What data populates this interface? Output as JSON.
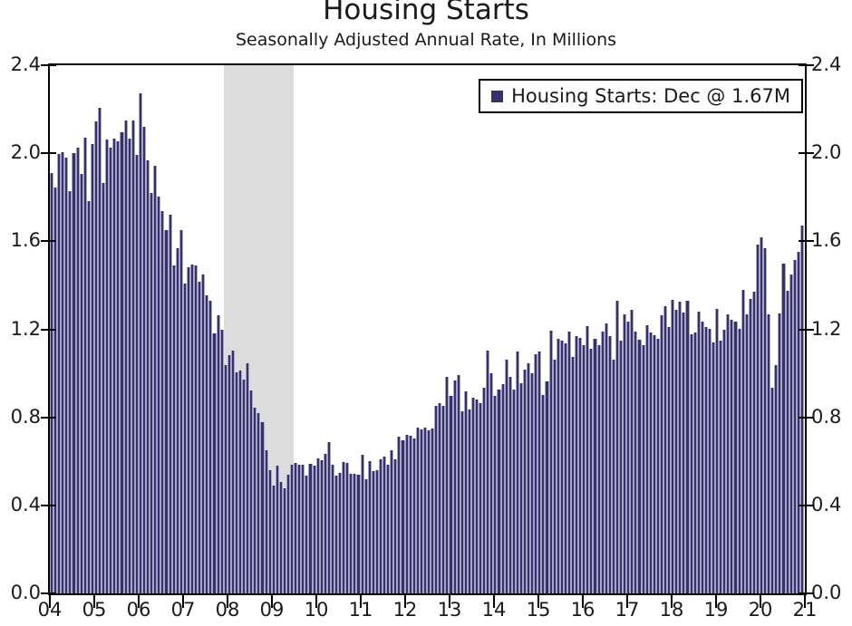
{
  "header": {
    "title": "Housing Starts",
    "subtitle": "Seasonally Adjusted Annual Rate, In Millions"
  },
  "legend": {
    "label": "Housing Starts: Dec @ 1.67M",
    "marker_color": "#363169",
    "position": "top-right"
  },
  "colors": {
    "bar_fill": "#363169",
    "bar_edge": "#a7a4c8",
    "recession_band": "#dcdcdc",
    "axis": "#000000",
    "background": "#ffffff"
  },
  "chart_data": {
    "type": "bar",
    "title": "Housing Starts",
    "subtitle": "Seasonally Adjusted Annual Rate, In Millions",
    "unit": "millions of units, SAAR",
    "frequency": "monthly",
    "ylim": [
      0.0,
      2.4
    ],
    "y_tick_labels": [
      "0.0",
      "0.4",
      "0.8",
      "1.2",
      "1.6",
      "2.0",
      "2.4"
    ],
    "y_axis_mirrored_right": true,
    "grid": false,
    "x_tick_labels": [
      "04",
      "05",
      "06",
      "07",
      "08",
      "09",
      "10",
      "11",
      "12",
      "13",
      "14",
      "15",
      "16",
      "17",
      "18",
      "19",
      "20",
      "21"
    ],
    "recession_band": {
      "from_index": 47,
      "to_index": 66
    },
    "series": [
      {
        "name": "Housing Starts",
        "values_by_year": [
          {
            "year": "2004",
            "monthly": [
              1.911,
              1.846,
              1.998,
              2.003,
              1.981,
              1.828,
              2.002,
              2.024,
              1.905,
              2.072,
              1.782,
              2.042
            ]
          },
          {
            "year": "2005",
            "monthly": [
              2.144,
              2.207,
              1.864,
              2.061,
              2.025,
              2.068,
              2.054,
              2.095,
              2.151,
              2.065,
              2.147,
              1.994
            ]
          },
          {
            "year": "2006",
            "monthly": [
              2.273,
              2.119,
              1.969,
              1.821,
              1.942,
              1.802,
              1.737,
              1.65,
              1.72,
              1.491,
              1.57,
              1.649
            ]
          },
          {
            "year": "2007",
            "monthly": [
              1.409,
              1.48,
              1.495,
              1.49,
              1.415,
              1.448,
              1.354,
              1.33,
              1.183,
              1.264,
              1.197,
              1.037
            ]
          },
          {
            "year": "2008",
            "monthly": [
              1.084,
              1.103,
              1.005,
              1.013,
              0.973,
              1.046,
              0.923,
              0.844,
              0.82,
              0.777,
              0.652,
              0.56
            ]
          },
          {
            "year": "2009",
            "monthly": [
              0.49,
              0.582,
              0.505,
              0.478,
              0.54,
              0.585,
              0.594,
              0.586,
              0.585,
              0.534,
              0.588,
              0.581
            ]
          },
          {
            "year": "2010",
            "monthly": [
              0.614,
              0.604,
              0.636,
              0.687,
              0.583,
              0.536,
              0.546,
              0.599,
              0.594,
              0.543,
              0.545,
              0.539
            ]
          },
          {
            "year": "2011",
            "monthly": [
              0.63,
              0.517,
              0.6,
              0.554,
              0.561,
              0.608,
              0.623,
              0.585,
              0.65,
              0.61,
              0.711,
              0.694
            ]
          },
          {
            "year": "2012",
            "monthly": [
              0.72,
              0.718,
              0.706,
              0.754,
              0.744,
              0.754,
              0.741,
              0.749,
              0.854,
              0.863,
              0.851,
              0.983
            ]
          },
          {
            "year": "2013",
            "monthly": [
              0.898,
              0.969,
              0.994,
              0.826,
              0.919,
              0.835,
              0.891,
              0.883,
              0.863,
              0.936,
              1.105,
              0.999
            ]
          },
          {
            "year": "2014",
            "monthly": [
              0.897,
              0.928,
              0.95,
              1.063,
              0.984,
              0.927,
              1.098,
              0.955,
              1.017,
              1.045,
              1.001,
              1.087
            ]
          },
          {
            "year": "2015",
            "monthly": [
              1.101,
              0.9,
              0.964,
              1.192,
              1.063,
              1.157,
              1.147,
              1.138,
              1.189,
              1.073,
              1.171,
              1.16
            ]
          },
          {
            "year": "2016",
            "monthly": [
              1.128,
              1.213,
              1.113,
              1.155,
              1.128,
              1.19,
              1.226,
              1.168,
              1.062,
              1.328,
              1.149,
              1.268
            ]
          },
          {
            "year": "2017",
            "monthly": [
              1.236,
              1.288,
              1.189,
              1.154,
              1.129,
              1.217,
              1.185,
              1.172,
              1.158,
              1.265,
              1.303,
              1.21
            ]
          },
          {
            "year": "2018",
            "monthly": [
              1.334,
              1.29,
              1.327,
              1.276,
              1.329,
              1.177,
              1.184,
              1.279,
              1.237,
              1.211,
              1.202,
              1.142
            ]
          },
          {
            "year": "2019",
            "monthly": [
              1.291,
              1.149,
              1.199,
              1.267,
              1.245,
              1.233,
              1.204,
              1.38,
              1.27,
              1.34,
              1.371,
              1.587
            ]
          },
          {
            "year": "2020",
            "monthly": [
              1.617,
              1.567,
              1.269,
              0.934,
              1.038,
              1.273,
              1.497,
              1.376,
              1.448,
              1.514,
              1.551,
              1.67
            ]
          }
        ]
      }
    ]
  }
}
